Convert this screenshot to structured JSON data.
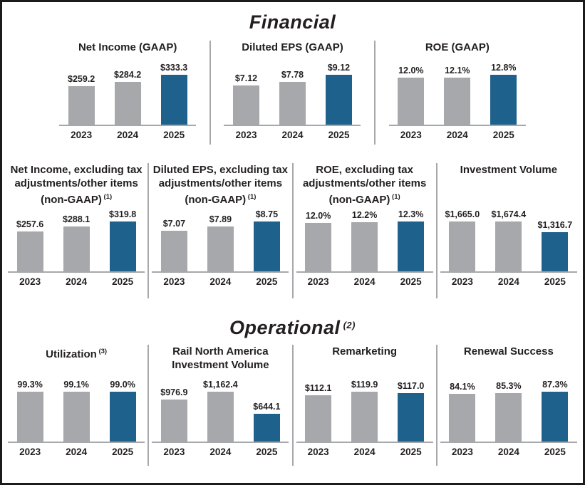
{
  "page": {
    "background": "#ffffff",
    "border_color": "#1b1b1b"
  },
  "colors": {
    "bar_gray": "#a6a8ab",
    "bar_blue": "#1f618d",
    "divider": "#a6a8ab",
    "axis": "#a6a8ab",
    "text": "#231f20"
  },
  "sections": {
    "financial": {
      "title": "Financial",
      "sup": ""
    },
    "operational": {
      "title": "Operational",
      "sup": "(2)"
    }
  },
  "chart_data": [
    {
      "type": "bar",
      "section": "financial",
      "row": 0,
      "title": "Net Income (GAAP)",
      "sup": "",
      "categories": [
        "2023",
        "2024",
        "2025"
      ],
      "values": [
        259.2,
        284.2,
        333.3
      ],
      "labels": [
        "$259.2",
        "$284.2",
        "$333.3"
      ],
      "bar_colors": [
        "gray",
        "gray",
        "blue"
      ]
    },
    {
      "type": "bar",
      "section": "financial",
      "row": 0,
      "title": "Diluted EPS (GAAP)",
      "sup": "",
      "categories": [
        "2023",
        "2024",
        "2025"
      ],
      "values": [
        7.12,
        7.78,
        9.12
      ],
      "labels": [
        "$7.12",
        "$7.78",
        "$9.12"
      ],
      "bar_colors": [
        "gray",
        "gray",
        "blue"
      ]
    },
    {
      "type": "bar",
      "section": "financial",
      "row": 0,
      "title": "ROE (GAAP)",
      "sup": "",
      "categories": [
        "2023",
        "2024",
        "2025"
      ],
      "values": [
        12.0,
        12.1,
        12.8
      ],
      "labels": [
        "12.0%",
        "12.1%",
        "12.8%"
      ],
      "bar_colors": [
        "gray",
        "gray",
        "blue"
      ]
    },
    {
      "type": "bar",
      "section": "financial",
      "row": 1,
      "title": "Net Income, excluding tax adjustments/other items (non-GAAP)",
      "sup": "(1)",
      "categories": [
        "2023",
        "2024",
        "2025"
      ],
      "values": [
        257.6,
        288.1,
        319.8
      ],
      "labels": [
        "$257.6",
        "$288.1",
        "$319.8"
      ],
      "bar_colors": [
        "gray",
        "gray",
        "blue"
      ]
    },
    {
      "type": "bar",
      "section": "financial",
      "row": 1,
      "title": "Diluted EPS, excluding tax adjustments/other items (non-GAAP)",
      "sup": "(1)",
      "categories": [
        "2023",
        "2024",
        "2025"
      ],
      "values": [
        7.07,
        7.89,
        8.75
      ],
      "labels": [
        "$7.07",
        "$7.89",
        "$8.75"
      ],
      "bar_colors": [
        "gray",
        "gray",
        "blue"
      ]
    },
    {
      "type": "bar",
      "section": "financial",
      "row": 1,
      "title": "ROE, excluding tax adjustments/other items (non-GAAP)",
      "sup": "(1)",
      "categories": [
        "2023",
        "2024",
        "2025"
      ],
      "values": [
        12.0,
        12.2,
        12.3
      ],
      "labels": [
        "12.0%",
        "12.2%",
        "12.3%"
      ],
      "bar_colors": [
        "gray",
        "gray",
        "blue"
      ]
    },
    {
      "type": "bar",
      "section": "financial",
      "row": 1,
      "title": "Investment Volume",
      "sup": "",
      "categories": [
        "2023",
        "2024",
        "2025"
      ],
      "values": [
        1665.0,
        1674.4,
        1316.7
      ],
      "labels": [
        "$1,665.0",
        "$1,674.4",
        "$1,316.7"
      ],
      "bar_colors": [
        "gray",
        "gray",
        "blue"
      ]
    },
    {
      "type": "bar",
      "section": "operational",
      "row": 2,
      "title": "Utilization",
      "sup": "(3)",
      "categories": [
        "2023",
        "2024",
        "2025"
      ],
      "values": [
        99.3,
        99.1,
        99.0
      ],
      "labels": [
        "99.3%",
        "99.1%",
        "99.0%"
      ],
      "bar_colors": [
        "gray",
        "gray",
        "blue"
      ]
    },
    {
      "type": "bar",
      "section": "operational",
      "row": 2,
      "title": "Rail North America Investment Volume",
      "sup": "",
      "categories": [
        "2023",
        "2024",
        "2025"
      ],
      "values": [
        976.9,
        1162.4,
        644.1
      ],
      "labels": [
        "$976.9",
        "$1,162.4",
        "$644.1"
      ],
      "bar_colors": [
        "gray",
        "gray",
        "blue"
      ]
    },
    {
      "type": "bar",
      "section": "operational",
      "row": 2,
      "title": "Remarketing",
      "sup": "",
      "categories": [
        "2023",
        "2024",
        "2025"
      ],
      "values": [
        112.1,
        119.9,
        117.0
      ],
      "labels": [
        "$112.1",
        "$119.9",
        "$117.0"
      ],
      "bar_colors": [
        "gray",
        "gray",
        "blue"
      ]
    },
    {
      "type": "bar",
      "section": "operational",
      "row": 2,
      "title": "Renewal Success",
      "sup": "",
      "categories": [
        "2023",
        "2024",
        "2025"
      ],
      "values": [
        84.1,
        85.3,
        87.3
      ],
      "labels": [
        "84.1%",
        "85.3%",
        "87.3%"
      ],
      "bar_colors": [
        "gray",
        "gray",
        "blue"
      ]
    }
  ]
}
